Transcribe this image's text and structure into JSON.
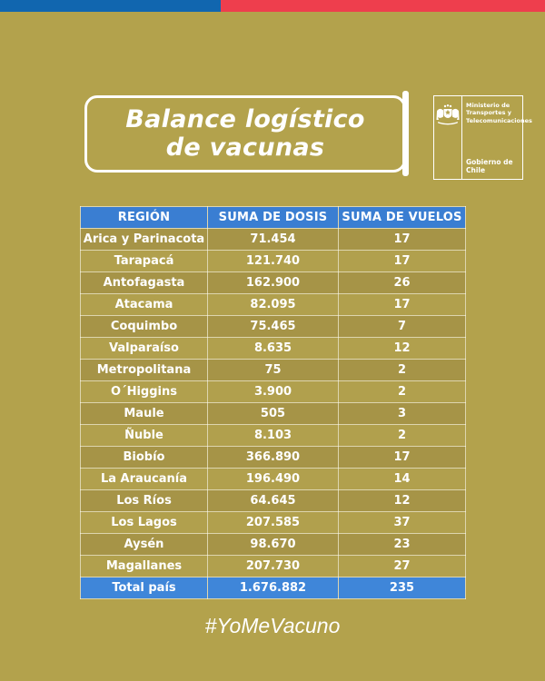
{
  "top_bar": {
    "blue_color": "#1166af",
    "red_color": "#ee3e4d"
  },
  "header": {
    "title_line1": "Balance logístico",
    "title_line2": "de vacunas",
    "logo": {
      "emblem_icon": "chile-coat-of-arms-icon",
      "ministry_line1": "Ministerio de",
      "ministry_line2": "Transportes y",
      "ministry_line3": "Telecomunicaciones",
      "government": "Gobierno de Chile"
    }
  },
  "chart_data": {
    "type": "table",
    "title": "Balance logístico de vacunas",
    "headers": [
      "REGIÓN",
      "SUMA DE DOSIS",
      "SUMA DE VUELOS"
    ],
    "rows": [
      [
        "Arica y Parinacota",
        "71.454",
        "17"
      ],
      [
        "Tarapacá",
        "121.740",
        "17"
      ],
      [
        "Antofagasta",
        "162.900",
        "26"
      ],
      [
        "Atacama",
        "82.095",
        "17"
      ],
      [
        "Coquimbo",
        "75.465",
        "7"
      ],
      [
        "Valparaíso",
        "8.635",
        "12"
      ],
      [
        "Metropolitana",
        "75",
        "2"
      ],
      [
        "O´Higgins",
        "3.900",
        "2"
      ],
      [
        "Maule",
        "505",
        "3"
      ],
      [
        "Ñuble",
        "8.103",
        "2"
      ],
      [
        "Biobío",
        "366.890",
        "17"
      ],
      [
        "La Araucanía",
        "196.490",
        "14"
      ],
      [
        "Los Ríos",
        "64.645",
        "12"
      ],
      [
        "Los Lagos",
        "207.585",
        "37"
      ],
      [
        "Aysén",
        "98.670",
        "23"
      ],
      [
        "Magallanes",
        "207.730",
        "27"
      ]
    ],
    "total_row": [
      "Total país",
      "1.676.882",
      "235"
    ]
  },
  "footer": {
    "hashtag": "#YoMeVacuno"
  },
  "colors": {
    "background": "#b3a24c",
    "bar_blue": "#1166af",
    "bar_red": "#ee3e4d",
    "table_header_blue": "#3a7ed2",
    "table_total_blue": "#3f86d9",
    "row_dark": "#a69447",
    "row_light": "#b1a04d",
    "text": "#ffffff"
  }
}
